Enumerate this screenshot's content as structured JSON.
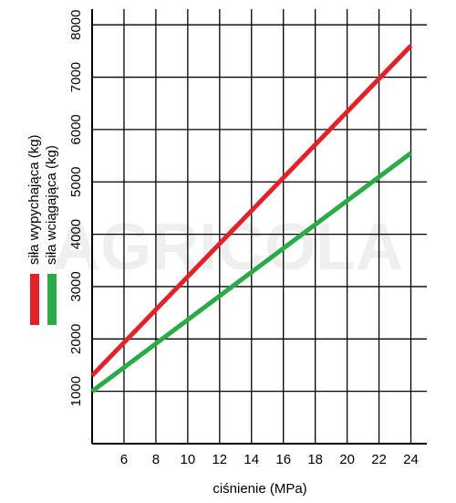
{
  "chart_data": {
    "type": "line",
    "x_label": "ciśnienie (MPa)",
    "watermark": "AGRICOLA",
    "x": [
      4,
      24
    ],
    "series": [
      {
        "name": "siła wypychająca (kg)",
        "color": "#e0232b",
        "values": [
          1300,
          7600
        ]
      },
      {
        "name": "siła wciągająca (kg)",
        "color": "#2bab48",
        "values": [
          1000,
          5550
        ]
      }
    ],
    "xlim": [
      4,
      25
    ],
    "ylim": [
      0,
      8300
    ],
    "xticks": [
      6,
      8,
      10,
      12,
      14,
      16,
      18,
      20,
      22,
      24
    ],
    "yticks": [
      1000,
      2000,
      3000,
      4000,
      5000,
      6000,
      7000,
      8000
    ],
    "grid": true
  }
}
